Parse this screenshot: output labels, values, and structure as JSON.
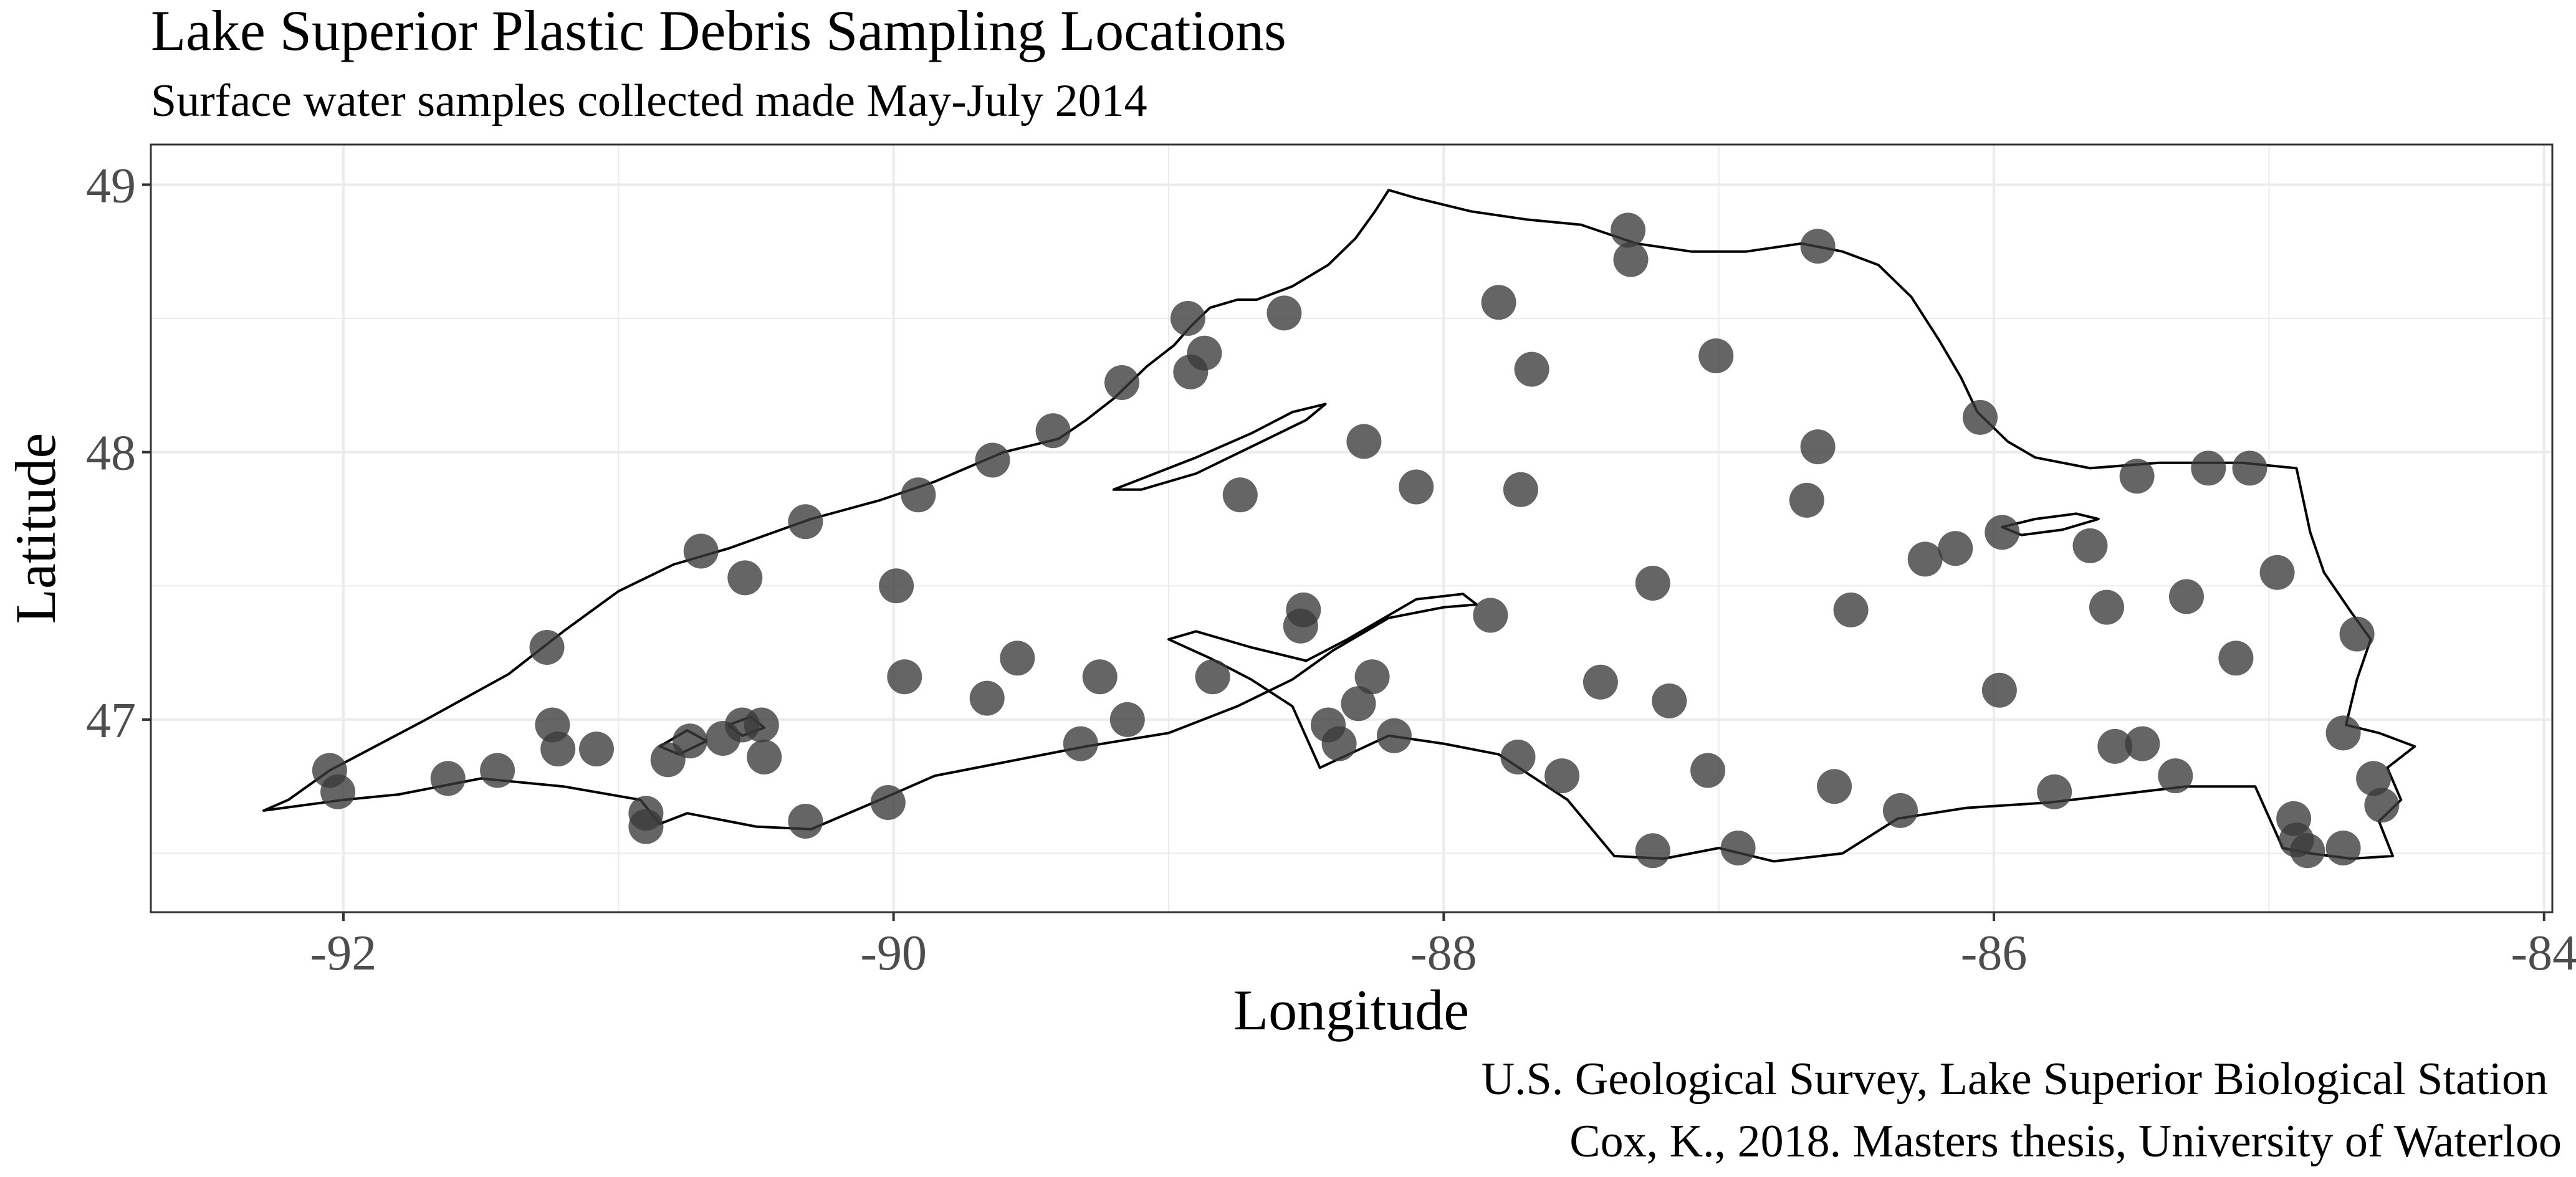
{
  "chart_data": {
    "type": "scatter",
    "title": "Lake Superior Plastic Debris Sampling Locations",
    "subtitle": "Surface water samples collected made May-July 2014",
    "xlabel": "Longitude",
    "ylabel": "Latitude",
    "xlim": [
      -92.7,
      -83.97
    ],
    "ylim": [
      46.28,
      49.15
    ],
    "x_ticks": [
      -92,
      -90,
      -88,
      -86,
      -84
    ],
    "x_tick_labels": [
      "-92",
      "-90",
      "-88",
      "-86",
      "-84"
    ],
    "y_ticks": [
      47,
      48,
      49
    ],
    "y_tick_labels": [
      "47",
      "48",
      "49"
    ],
    "grid": true,
    "captions": [
      "U.S. Geological Survey, Lake Superior Biological Station",
      "Cox, K., 2018. Masters thesis, University of Waterloo"
    ],
    "colors": {
      "point": "#3a3a3a",
      "shoreline": "#000000",
      "grid": "#ebebeb",
      "panel_border": "#333333"
    },
    "points": [
      {
        "x": -92.05,
        "y": 46.81
      },
      {
        "x": -92.02,
        "y": 46.73
      },
      {
        "x": -91.62,
        "y": 46.78
      },
      {
        "x": -91.44,
        "y": 46.81
      },
      {
        "x": -91.26,
        "y": 47.27
      },
      {
        "x": -91.24,
        "y": 46.98
      },
      {
        "x": -91.22,
        "y": 46.89
      },
      {
        "x": -91.08,
        "y": 46.89
      },
      {
        "x": -90.9,
        "y": 46.65
      },
      {
        "x": -90.9,
        "y": 46.6
      },
      {
        "x": -90.82,
        "y": 46.85
      },
      {
        "x": -90.74,
        "y": 46.92
      },
      {
        "x": -90.62,
        "y": 46.93
      },
      {
        "x": -90.55,
        "y": 46.98
      },
      {
        "x": -90.48,
        "y": 46.98
      },
      {
        "x": -90.47,
        "y": 46.86
      },
      {
        "x": -90.7,
        "y": 47.63
      },
      {
        "x": -90.54,
        "y": 47.53
      },
      {
        "x": -90.32,
        "y": 47.74
      },
      {
        "x": -90.32,
        "y": 46.62
      },
      {
        "x": -90.02,
        "y": 46.69
      },
      {
        "x": -89.99,
        "y": 47.5
      },
      {
        "x": -89.96,
        "y": 47.16
      },
      {
        "x": -89.91,
        "y": 47.84
      },
      {
        "x": -89.64,
        "y": 47.97
      },
      {
        "x": -89.66,
        "y": 47.08
      },
      {
        "x": -89.55,
        "y": 47.23
      },
      {
        "x": -89.42,
        "y": 48.08
      },
      {
        "x": -89.32,
        "y": 46.91
      },
      {
        "x": -89.25,
        "y": 47.16
      },
      {
        "x": -89.15,
        "y": 47.0
      },
      {
        "x": -89.17,
        "y": 48.26
      },
      {
        "x": -88.93,
        "y": 48.5
      },
      {
        "x": -88.92,
        "y": 48.3
      },
      {
        "x": -88.87,
        "y": 48.37
      },
      {
        "x": -88.84,
        "y": 47.16
      },
      {
        "x": -88.74,
        "y": 47.84
      },
      {
        "x": -88.58,
        "y": 48.52
      },
      {
        "x": -88.51,
        "y": 47.41
      },
      {
        "x": -88.52,
        "y": 47.35
      },
      {
        "x": -88.42,
        "y": 46.98
      },
      {
        "x": -88.38,
        "y": 46.91
      },
      {
        "x": -88.31,
        "y": 47.06
      },
      {
        "x": -88.26,
        "y": 47.16
      },
      {
        "x": -88.29,
        "y": 48.04
      },
      {
        "x": -88.18,
        "y": 46.94
      },
      {
        "x": -88.1,
        "y": 47.87
      },
      {
        "x": -87.83,
        "y": 47.39
      },
      {
        "x": -87.8,
        "y": 48.56
      },
      {
        "x": -87.73,
        "y": 46.86
      },
      {
        "x": -87.72,
        "y": 47.86
      },
      {
        "x": -87.68,
        "y": 48.31
      },
      {
        "x": -87.57,
        "y": 46.79
      },
      {
        "x": -87.43,
        "y": 47.14
      },
      {
        "x": -87.33,
        "y": 48.83
      },
      {
        "x": -87.32,
        "y": 48.72
      },
      {
        "x": -87.24,
        "y": 47.51
      },
      {
        "x": -87.24,
        "y": 46.51
      },
      {
        "x": -87.18,
        "y": 47.07
      },
      {
        "x": -87.04,
        "y": 46.81
      },
      {
        "x": -87.01,
        "y": 48.36
      },
      {
        "x": -86.93,
        "y": 46.52
      },
      {
        "x": -86.68,
        "y": 47.82
      },
      {
        "x": -86.64,
        "y": 48.77
      },
      {
        "x": -86.64,
        "y": 48.02
      },
      {
        "x": -86.58,
        "y": 46.75
      },
      {
        "x": -86.52,
        "y": 47.41
      },
      {
        "x": -86.34,
        "y": 46.66
      },
      {
        "x": -86.25,
        "y": 47.6
      },
      {
        "x": -86.14,
        "y": 47.64
      },
      {
        "x": -86.05,
        "y": 48.13
      },
      {
        "x": -85.97,
        "y": 47.7
      },
      {
        "x": -85.98,
        "y": 47.11
      },
      {
        "x": -85.78,
        "y": 46.73
      },
      {
        "x": -85.65,
        "y": 47.65
      },
      {
        "x": -85.59,
        "y": 47.42
      },
      {
        "x": -85.56,
        "y": 46.9
      },
      {
        "x": -85.48,
        "y": 47.91
      },
      {
        "x": -85.46,
        "y": 46.91
      },
      {
        "x": -85.34,
        "y": 46.79
      },
      {
        "x": -85.3,
        "y": 47.46
      },
      {
        "x": -85.22,
        "y": 47.94
      },
      {
        "x": -85.12,
        "y": 47.23
      },
      {
        "x": -85.07,
        "y": 47.94
      },
      {
        "x": -84.97,
        "y": 47.55
      },
      {
        "x": -84.91,
        "y": 46.63
      },
      {
        "x": -84.9,
        "y": 46.55
      },
      {
        "x": -84.86,
        "y": 46.51
      },
      {
        "x": -84.73,
        "y": 46.95
      },
      {
        "x": -84.73,
        "y": 46.52
      },
      {
        "x": -84.68,
        "y": 47.32
      },
      {
        "x": -84.62,
        "y": 46.78
      },
      {
        "x": -84.59,
        "y": 46.68
      }
    ],
    "shoreline_main": [
      [
        -92.29,
        46.66
      ],
      [
        -92.2,
        46.7
      ],
      [
        -92.05,
        46.81
      ],
      [
        -91.7,
        47.0
      ],
      [
        -91.4,
        47.17
      ],
      [
        -91.2,
        47.33
      ],
      [
        -91.0,
        47.48
      ],
      [
        -90.8,
        47.58
      ],
      [
        -90.6,
        47.64
      ],
      [
        -90.3,
        47.75
      ],
      [
        -90.05,
        47.82
      ],
      [
        -89.85,
        47.89
      ],
      [
        -89.6,
        48.0
      ],
      [
        -89.4,
        48.05
      ],
      [
        -89.3,
        48.12
      ],
      [
        -89.2,
        48.2
      ],
      [
        -89.08,
        48.32
      ],
      [
        -88.98,
        48.4
      ],
      [
        -88.92,
        48.47
      ],
      [
        -88.85,
        48.54
      ],
      [
        -88.75,
        48.57
      ],
      [
        -88.68,
        48.57
      ],
      [
        -88.55,
        48.62
      ],
      [
        -88.42,
        48.7
      ],
      [
        -88.32,
        48.8
      ],
      [
        -88.25,
        48.9
      ],
      [
        -88.2,
        48.98
      ],
      [
        -88.1,
        48.95
      ],
      [
        -87.9,
        48.9
      ],
      [
        -87.7,
        48.87
      ],
      [
        -87.5,
        48.85
      ],
      [
        -87.3,
        48.78
      ],
      [
        -87.1,
        48.75
      ],
      [
        -86.9,
        48.75
      ],
      [
        -86.7,
        48.78
      ],
      [
        -86.55,
        48.75
      ],
      [
        -86.42,
        48.7
      ],
      [
        -86.3,
        48.58
      ],
      [
        -86.2,
        48.42
      ],
      [
        -86.12,
        48.28
      ],
      [
        -86.06,
        48.15
      ],
      [
        -85.95,
        48.04
      ],
      [
        -85.85,
        47.98
      ],
      [
        -85.65,
        47.94
      ],
      [
        -85.4,
        47.96
      ],
      [
        -85.1,
        47.96
      ],
      [
        -84.9,
        47.94
      ],
      [
        -84.85,
        47.7
      ],
      [
        -84.8,
        47.55
      ],
      [
        -84.7,
        47.4
      ],
      [
        -84.63,
        47.3
      ],
      [
        -84.68,
        47.15
      ],
      [
        -84.72,
        46.98
      ],
      [
        -84.6,
        46.95
      ],
      [
        -84.47,
        46.9
      ],
      [
        -84.57,
        46.82
      ],
      [
        -84.52,
        46.7
      ],
      [
        -84.6,
        46.62
      ],
      [
        -84.55,
        46.49
      ],
      [
        -84.7,
        46.48
      ],
      [
        -84.85,
        46.5
      ],
      [
        -84.95,
        46.52
      ],
      [
        -85.05,
        46.75
      ],
      [
        -85.3,
        46.75
      ],
      [
        -85.8,
        46.69
      ],
      [
        -86.1,
        46.67
      ],
      [
        -86.35,
        46.63
      ],
      [
        -86.55,
        46.5
      ],
      [
        -86.8,
        46.47
      ],
      [
        -87.0,
        46.52
      ],
      [
        -87.2,
        46.48
      ],
      [
        -87.38,
        46.49
      ],
      [
        -87.55,
        46.7
      ],
      [
        -87.8,
        46.87
      ],
      [
        -88.0,
        46.91
      ],
      [
        -88.2,
        46.94
      ],
      [
        -88.45,
        46.82
      ],
      [
        -88.55,
        47.05
      ],
      [
        -88.7,
        47.15
      ],
      [
        -88.85,
        47.23
      ],
      [
        -89.0,
        47.3
      ],
      [
        -88.9,
        47.33
      ],
      [
        -88.7,
        47.27
      ],
      [
        -88.5,
        47.22
      ],
      [
        -88.35,
        47.3
      ],
      [
        -88.1,
        47.45
      ],
      [
        -87.93,
        47.47
      ],
      [
        -87.88,
        47.43
      ],
      [
        -88.0,
        47.42
      ],
      [
        -88.2,
        47.38
      ],
      [
        -88.4,
        47.26
      ],
      [
        -88.55,
        47.15
      ],
      [
        -88.75,
        47.05
      ],
      [
        -89.0,
        46.95
      ],
      [
        -89.3,
        46.9
      ],
      [
        -89.6,
        46.84
      ],
      [
        -89.85,
        46.79
      ],
      [
        -90.05,
        46.7
      ],
      [
        -90.3,
        46.59
      ],
      [
        -90.5,
        46.6
      ],
      [
        -90.75,
        46.65
      ],
      [
        -90.85,
        46.61
      ],
      [
        -90.92,
        46.7
      ],
      [
        -91.2,
        46.75
      ],
      [
        -91.5,
        46.78
      ],
      [
        -91.8,
        46.72
      ],
      [
        -92.0,
        46.7
      ],
      [
        -92.29,
        46.66
      ]
    ],
    "shoreline_isle_royale": [
      [
        -89.2,
        47.86
      ],
      [
        -89.1,
        47.9
      ],
      [
        -88.9,
        47.98
      ],
      [
        -88.7,
        48.07
      ],
      [
        -88.55,
        48.15
      ],
      [
        -88.43,
        48.18
      ],
      [
        -88.5,
        48.12
      ],
      [
        -88.7,
        48.02
      ],
      [
        -88.9,
        47.92
      ],
      [
        -89.1,
        47.86
      ],
      [
        -89.2,
        47.86
      ]
    ],
    "shoreline_michipicoten": [
      [
        -85.97,
        47.72
      ],
      [
        -85.85,
        47.75
      ],
      [
        -85.7,
        47.77
      ],
      [
        -85.62,
        47.75
      ],
      [
        -85.75,
        47.71
      ],
      [
        -85.9,
        47.69
      ],
      [
        -85.97,
        47.72
      ]
    ],
    "shoreline_apostle_islands": [
      [
        [
          -90.85,
          46.9
        ],
        [
          -90.75,
          46.96
        ],
        [
          -90.68,
          46.92
        ],
        [
          -90.78,
          46.87
        ],
        [
          -90.85,
          46.9
        ]
      ],
      [
        [
          -90.6,
          46.98
        ],
        [
          -90.52,
          47.01
        ],
        [
          -90.47,
          46.97
        ],
        [
          -90.55,
          46.94
        ],
        [
          -90.6,
          46.98
        ]
      ]
    ]
  }
}
